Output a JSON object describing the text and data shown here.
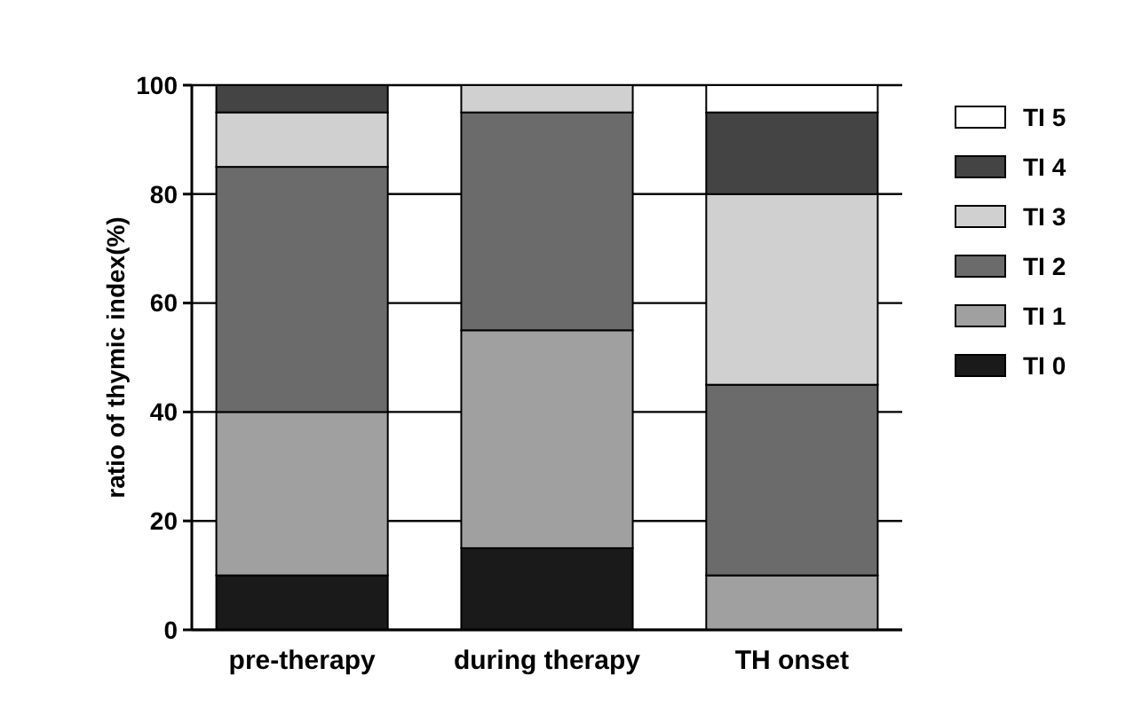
{
  "chart_data": {
    "type": "bar",
    "stacked": true,
    "ylabel": "ratio of thymic index(%)",
    "categories": [
      "pre-therapy",
      "during therapy",
      "TH onset"
    ],
    "ylim": [
      0,
      100
    ],
    "yticks": [
      0,
      20,
      40,
      60,
      80,
      100
    ],
    "grid": "y",
    "legend": "right",
    "series": [
      {
        "name": "TI 0",
        "color": "#1a1a1a",
        "values": [
          10,
          15,
          0
        ]
      },
      {
        "name": "TI 1",
        "color": "#a0a0a0",
        "values": [
          30,
          40,
          10
        ]
      },
      {
        "name": "TI 2",
        "color": "#6b6b6b",
        "values": [
          45,
          40,
          35
        ]
      },
      {
        "name": "TI 3",
        "color": "#d0d0d0",
        "values": [
          10,
          5,
          35
        ]
      },
      {
        "name": "TI 4",
        "color": "#444444",
        "values": [
          5,
          0,
          15
        ]
      },
      {
        "name": "TI 5",
        "color": "#ffffff",
        "values": [
          0,
          0,
          5
        ]
      }
    ]
  }
}
